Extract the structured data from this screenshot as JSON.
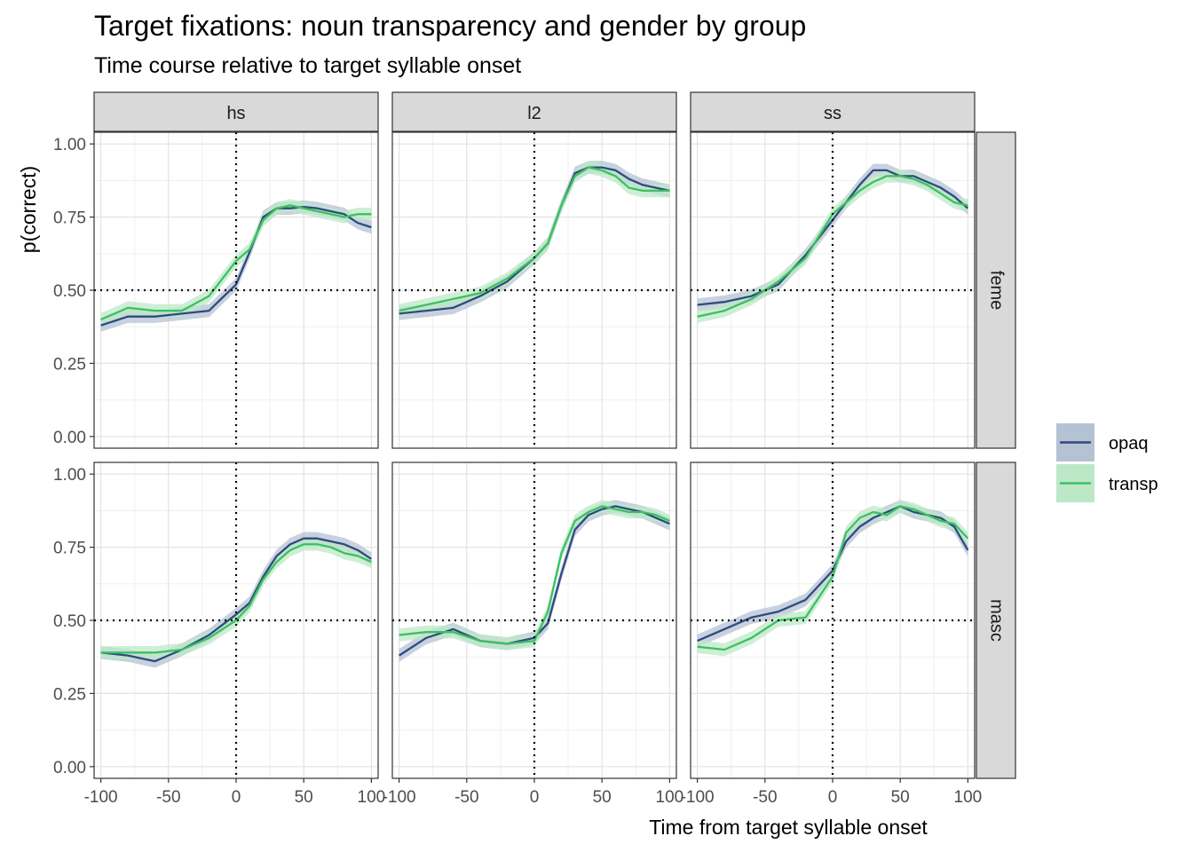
{
  "chart_data": {
    "type": "line",
    "title": "Target fixations: noun transparency and gender by group",
    "subtitle": "Time course relative to target syllable onset",
    "xlabel": "Time from target syllable onset",
    "ylabel": "p(correct)",
    "xlim": [
      -105,
      105
    ],
    "ylim": [
      -0.04,
      1.04
    ],
    "x_ticks": [
      -100,
      -50,
      0,
      50,
      100
    ],
    "x_tick_labels": [
      "-100",
      "-50",
      "0",
      "50",
      "100"
    ],
    "y_ticks": [
      0,
      0.25,
      0.5,
      0.75,
      1
    ],
    "y_tick_labels": [
      "0.00",
      "0.25",
      "0.50",
      "0.75",
      "1.00"
    ],
    "reference_lines": {
      "x": 0,
      "y": 0.5
    },
    "columns": [
      "hs",
      "l2",
      "ss"
    ],
    "rows": [
      "feme",
      "masc"
    ],
    "x": [
      -100,
      -80,
      -60,
      -40,
      -20,
      0,
      10,
      20,
      30,
      40,
      50,
      60,
      70,
      80,
      90,
      100
    ],
    "legend": {
      "position": "right",
      "entries": [
        {
          "key": "opaq",
          "label": "opaq",
          "line_color": "#2e4b7f",
          "band_color": "#b5c2d3"
        },
        {
          "key": "transp",
          "label": "transp",
          "line_color": "#3cc160",
          "band_color": "#bde8c8"
        }
      ]
    },
    "panels": [
      {
        "column": "hs",
        "row": "feme",
        "series": {
          "opaq": [
            0.38,
            0.41,
            0.41,
            0.42,
            0.43,
            0.52,
            0.63,
            0.75,
            0.78,
            0.78,
            0.785,
            0.78,
            0.77,
            0.76,
            0.73,
            0.715
          ],
          "transp": [
            0.4,
            0.44,
            0.43,
            0.43,
            0.48,
            0.6,
            0.64,
            0.74,
            0.78,
            0.79,
            0.78,
            0.77,
            0.76,
            0.75,
            0.76,
            0.76
          ]
        }
      },
      {
        "column": "l2",
        "row": "feme",
        "series": {
          "opaq": [
            0.42,
            0.43,
            0.44,
            0.48,
            0.53,
            0.61,
            0.66,
            0.79,
            0.9,
            0.92,
            0.92,
            0.91,
            0.88,
            0.86,
            0.85,
            0.84
          ],
          "transp": [
            0.43,
            0.45,
            0.47,
            0.49,
            0.54,
            0.61,
            0.66,
            0.79,
            0.89,
            0.92,
            0.91,
            0.89,
            0.85,
            0.84,
            0.84,
            0.84
          ]
        }
      },
      {
        "column": "ss",
        "row": "feme",
        "series": {
          "opaq": [
            0.45,
            0.46,
            0.48,
            0.52,
            0.62,
            0.74,
            0.8,
            0.86,
            0.91,
            0.91,
            0.89,
            0.89,
            0.87,
            0.85,
            0.82,
            0.78
          ],
          "transp": [
            0.41,
            0.43,
            0.47,
            0.53,
            0.61,
            0.76,
            0.8,
            0.84,
            0.87,
            0.89,
            0.89,
            0.88,
            0.86,
            0.83,
            0.8,
            0.79
          ]
        }
      },
      {
        "column": "hs",
        "row": "masc",
        "series": {
          "opaq": [
            0.39,
            0.38,
            0.36,
            0.4,
            0.45,
            0.52,
            0.56,
            0.65,
            0.72,
            0.76,
            0.78,
            0.78,
            0.77,
            0.76,
            0.74,
            0.71
          ],
          "transp": [
            0.39,
            0.39,
            0.39,
            0.4,
            0.44,
            0.5,
            0.55,
            0.64,
            0.7,
            0.74,
            0.76,
            0.76,
            0.75,
            0.73,
            0.72,
            0.7
          ]
        }
      },
      {
        "column": "l2",
        "row": "masc",
        "series": {
          "opaq": [
            0.38,
            0.44,
            0.47,
            0.43,
            0.42,
            0.44,
            0.49,
            0.66,
            0.81,
            0.86,
            0.88,
            0.89,
            0.88,
            0.87,
            0.85,
            0.83
          ],
          "transp": [
            0.45,
            0.46,
            0.46,
            0.43,
            0.42,
            0.43,
            0.53,
            0.73,
            0.84,
            0.87,
            0.89,
            0.88,
            0.87,
            0.87,
            0.86,
            0.84
          ]
        }
      },
      {
        "column": "ss",
        "row": "masc",
        "series": {
          "opaq": [
            0.43,
            0.47,
            0.51,
            0.53,
            0.57,
            0.67,
            0.77,
            0.82,
            0.85,
            0.87,
            0.89,
            0.87,
            0.86,
            0.85,
            0.82,
            0.74
          ],
          "transp": [
            0.41,
            0.4,
            0.44,
            0.5,
            0.51,
            0.65,
            0.8,
            0.85,
            0.87,
            0.86,
            0.89,
            0.88,
            0.86,
            0.84,
            0.83,
            0.78
          ]
        }
      }
    ]
  }
}
